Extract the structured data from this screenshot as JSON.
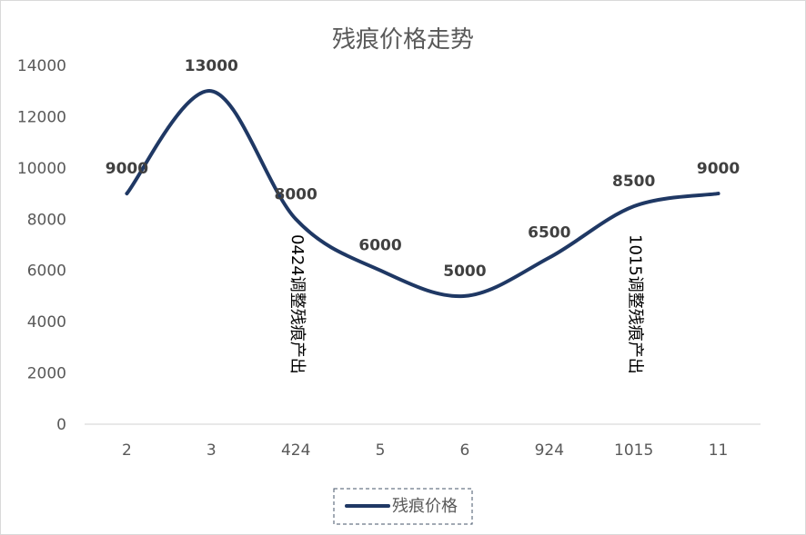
{
  "chart_data": {
    "type": "line",
    "title": "残痕价格走势",
    "xlabel": "",
    "ylabel": "",
    "categories": [
      "2",
      "3",
      "424",
      "5",
      "6",
      "924",
      "1015",
      "11"
    ],
    "series": [
      {
        "name": "残痕价格",
        "values": [
          9000,
          13000,
          8000,
          6000,
          5000,
          6500,
          8500,
          9000
        ],
        "color": "#1f3864"
      }
    ],
    "data_labels": [
      "9000",
      "13000",
      "8000",
      "6000",
      "5000",
      "6500",
      "8500",
      "9000"
    ],
    "ylim": [
      0,
      14000
    ],
    "yticks": [
      "0",
      "2000",
      "4000",
      "6000",
      "8000",
      "10000",
      "12000",
      "14000"
    ],
    "annotations": [
      {
        "category": "424",
        "text": "0424调整残痕产出"
      },
      {
        "category": "1015",
        "text": "1015调整残痕产出"
      }
    ],
    "grid": false,
    "legend_position": "bottom",
    "smooth": true
  }
}
